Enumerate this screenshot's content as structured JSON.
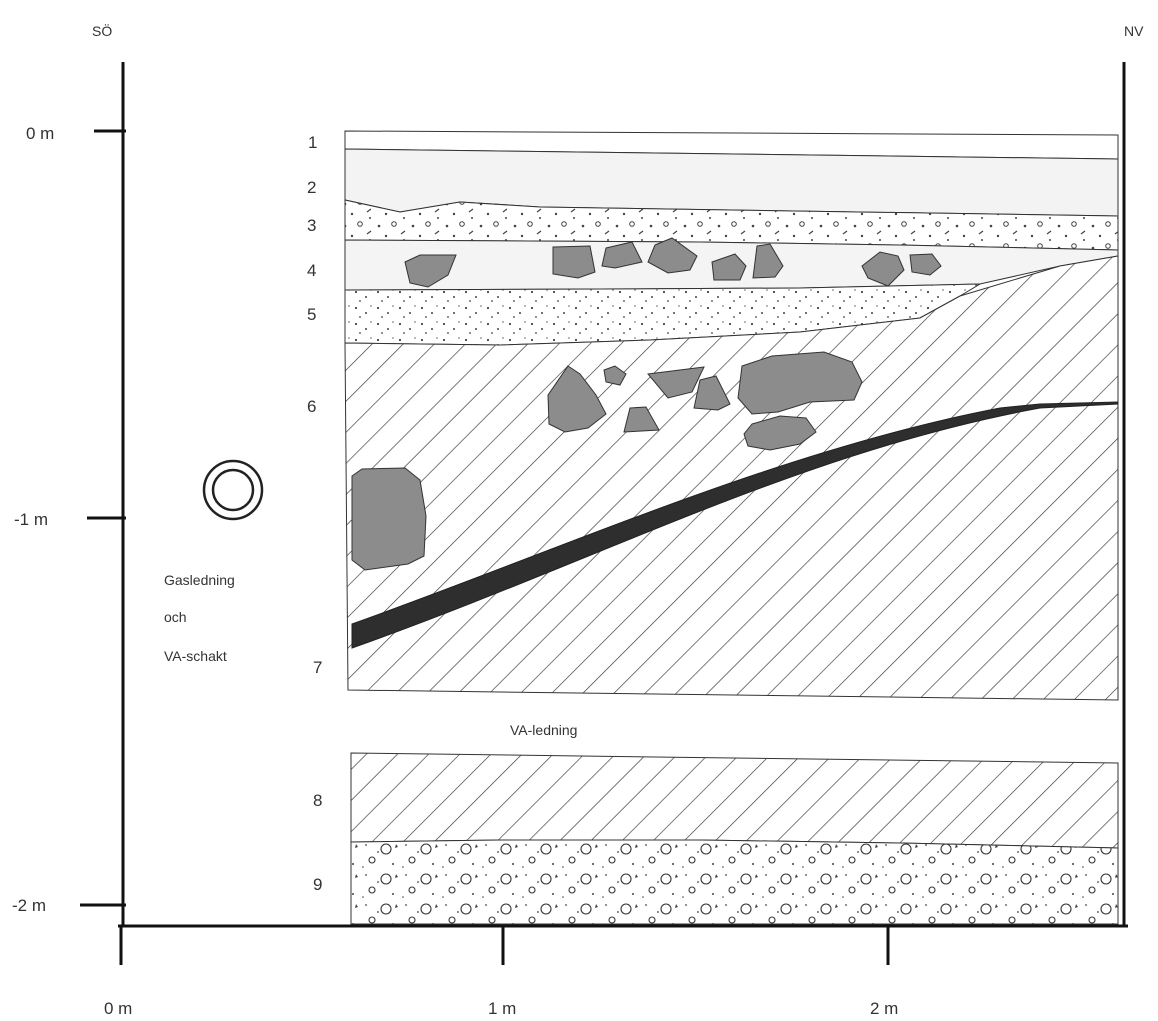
{
  "orientation": {
    "left": "SÖ",
    "right": "NV"
  },
  "depth_axis": [
    "0 m",
    "-1 m",
    "-2 m"
  ],
  "distance_axis": [
    "0 m",
    "1 m",
    "2 m"
  ],
  "layers": [
    "1",
    "2",
    "3",
    "4",
    "5",
    "6",
    "7",
    "8",
    "9"
  ],
  "annotations": {
    "gas_line": [
      "Gasledning",
      "och",
      "VA-schakt"
    ],
    "water_line": "VA-ledning"
  },
  "colors": {
    "stone": "#8c8c8c",
    "charcoal": "#2e2e2e",
    "hatch": "#333333",
    "layer2": "#f3f3f3"
  }
}
